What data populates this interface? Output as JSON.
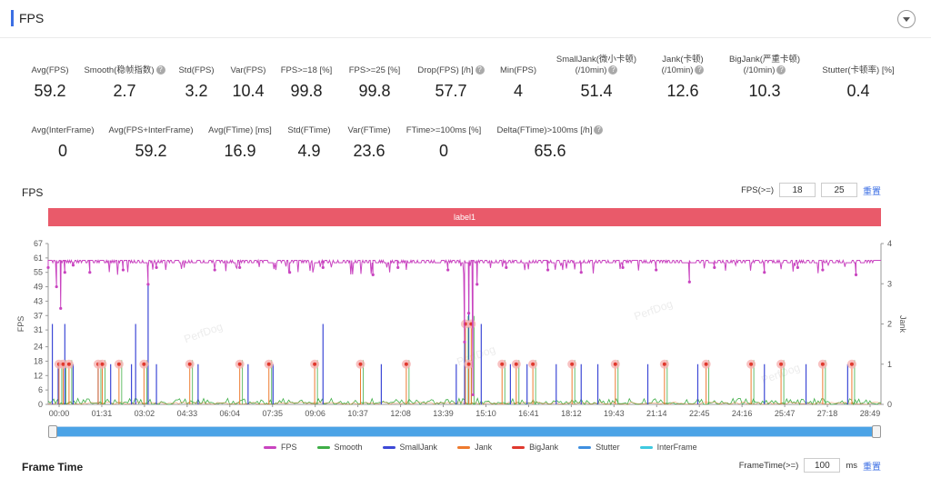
{
  "header": {
    "title": "FPS"
  },
  "stats_row1": [
    {
      "label": "Avg(FPS)",
      "value": "59.2",
      "help": false
    },
    {
      "label": "Smooth(稳帧指数)",
      "value": "2.7",
      "help": true
    },
    {
      "label": "Std(FPS)",
      "value": "3.2",
      "help": false
    },
    {
      "label": "Var(FPS)",
      "value": "10.4",
      "help": false
    },
    {
      "label": "FPS>=18 [%]",
      "value": "99.8",
      "help": false
    },
    {
      "label": "FPS>=25 [%]",
      "value": "99.8",
      "help": false
    },
    {
      "label": "Drop(FPS) [/h]",
      "value": "57.7",
      "help": true
    },
    {
      "label": "Min(FPS)",
      "value": "4",
      "help": false
    },
    {
      "label": "SmallJank(微小卡顿)",
      "label2": "(/10min)",
      "value": "51.4",
      "help": true
    },
    {
      "label": "Jank(卡顿)",
      "label2": "(/10min)",
      "value": "12.6",
      "help": true
    },
    {
      "label": "BigJank(严重卡顿)",
      "label2": "(/10min)",
      "value": "10.3",
      "help": true
    },
    {
      "label": "Stutter(卡顿率) [%]",
      "value": "0.4",
      "help": false
    }
  ],
  "stats_row2": [
    {
      "label": "Avg(InterFrame)",
      "value": "0",
      "help": false
    },
    {
      "label": "Avg(FPS+InterFrame)",
      "value": "59.2",
      "help": false
    },
    {
      "label": "Avg(FTime) [ms]",
      "value": "16.9",
      "help": false
    },
    {
      "label": "Std(FTime)",
      "value": "4.9",
      "help": false
    },
    {
      "label": "Var(FTime)",
      "value": "23.6",
      "help": false
    },
    {
      "label": "FTime>=100ms [%]",
      "value": "0",
      "help": false
    },
    {
      "label": "Delta(FTime)>100ms [/h]",
      "value": "65.6",
      "help": true
    }
  ],
  "fps_section": {
    "title": "FPS",
    "threshold_label": "FPS(>=)",
    "threshold1": "18",
    "threshold2": "25",
    "reset": "重置",
    "label_bar": "label1"
  },
  "frametime_section": {
    "title": "Frame Time",
    "threshold_label": "FrameTime(>=)",
    "threshold": "100",
    "unit": "ms",
    "reset": "重置"
  },
  "watermark": "PerfDog",
  "legend": [
    {
      "name": "FPS",
      "color": "#c944c0"
    },
    {
      "name": "Smooth",
      "color": "#3fae47"
    },
    {
      "name": "SmallJank",
      "color": "#3d49d6"
    },
    {
      "name": "Jank",
      "color": "#ee7a2e"
    },
    {
      "name": "BigJank",
      "color": "#e0392e"
    },
    {
      "name": "Stutter",
      "color": "#3f8fe0"
    },
    {
      "name": "InterFrame",
      "color": "#3fc9e0"
    }
  ],
  "chart_data": {
    "type": "line",
    "ylabel": "FPS",
    "y2label": "Jank",
    "yticks": [
      0,
      6,
      12,
      18,
      24,
      31,
      37,
      43,
      49,
      55,
      61,
      67
    ],
    "y2ticks": [
      0,
      1,
      2,
      3,
      4
    ],
    "ylim": [
      0,
      67
    ],
    "y2lim": [
      0,
      4
    ],
    "x_ticks": [
      "00:00",
      "01:31",
      "03:02",
      "04:33",
      "06:04",
      "07:35",
      "09:06",
      "10:37",
      "12:08",
      "13:39",
      "15:10",
      "16:41",
      "18:12",
      "19:43",
      "21:14",
      "22:45",
      "24:16",
      "25:47",
      "27:18",
      "28:49"
    ],
    "fps_baseline": 60,
    "fps_dips": [
      {
        "t": 0.0,
        "v": 57
      },
      {
        "t": 0.01,
        "v": 49
      },
      {
        "t": 0.015,
        "v": 40
      },
      {
        "t": 0.02,
        "v": 55
      },
      {
        "t": 0.03,
        "v": 58
      },
      {
        "t": 0.05,
        "v": 55
      },
      {
        "t": 0.09,
        "v": 56
      },
      {
        "t": 0.12,
        "v": 50
      },
      {
        "t": 0.13,
        "v": 57
      },
      {
        "t": 0.2,
        "v": 56
      },
      {
        "t": 0.23,
        "v": 57
      },
      {
        "t": 0.29,
        "v": 55
      },
      {
        "t": 0.33,
        "v": 57
      },
      {
        "t": 0.39,
        "v": 54
      },
      {
        "t": 0.42,
        "v": 57
      },
      {
        "t": 0.48,
        "v": 56
      },
      {
        "t": 0.5,
        "v": 26
      },
      {
        "t": 0.505,
        "v": 38
      },
      {
        "t": 0.51,
        "v": 4
      },
      {
        "t": 0.515,
        "v": 50
      },
      {
        "t": 0.55,
        "v": 57
      },
      {
        "t": 0.6,
        "v": 56
      },
      {
        "t": 0.64,
        "v": 55
      },
      {
        "t": 0.69,
        "v": 57
      },
      {
        "t": 0.73,
        "v": 56
      },
      {
        "t": 0.77,
        "v": 51
      },
      {
        "t": 0.8,
        "v": 57
      },
      {
        "t": 0.86,
        "v": 55
      },
      {
        "t": 0.9,
        "v": 57
      },
      {
        "t": 0.93,
        "v": 56
      },
      {
        "t": 0.97,
        "v": 54
      }
    ],
    "smalljank_spikes": [
      {
        "t": 0.005,
        "v": 2
      },
      {
        "t": 0.012,
        "v": 1
      },
      {
        "t": 0.02,
        "v": 2
      },
      {
        "t": 0.03,
        "v": 1
      },
      {
        "t": 0.06,
        "v": 1
      },
      {
        "t": 0.075,
        "v": 1
      },
      {
        "t": 0.1,
        "v": 1
      },
      {
        "t": 0.105,
        "v": 2
      },
      {
        "t": 0.12,
        "v": 3
      },
      {
        "t": 0.13,
        "v": 1
      },
      {
        "t": 0.18,
        "v": 1
      },
      {
        "t": 0.24,
        "v": 1
      },
      {
        "t": 0.27,
        "v": 1
      },
      {
        "t": 0.33,
        "v": 2
      },
      {
        "t": 0.4,
        "v": 1
      },
      {
        "t": 0.49,
        "v": 1
      },
      {
        "t": 0.5,
        "v": 2
      },
      {
        "t": 0.505,
        "v": 3
      },
      {
        "t": 0.52,
        "v": 2
      },
      {
        "t": 0.555,
        "v": 1
      },
      {
        "t": 0.575,
        "v": 1
      },
      {
        "t": 0.61,
        "v": 1
      },
      {
        "t": 0.64,
        "v": 1
      },
      {
        "t": 0.66,
        "v": 1
      },
      {
        "t": 0.72,
        "v": 1
      },
      {
        "t": 0.78,
        "v": 1
      },
      {
        "t": 0.86,
        "v": 1
      },
      {
        "t": 0.91,
        "v": 1
      },
      {
        "t": 0.96,
        "v": 1
      }
    ],
    "bigjank_markers": [
      {
        "t": 0.013,
        "v": 1
      },
      {
        "t": 0.018,
        "v": 1
      },
      {
        "t": 0.025,
        "v": 1
      },
      {
        "t": 0.06,
        "v": 1
      },
      {
        "t": 0.065,
        "v": 1
      },
      {
        "t": 0.085,
        "v": 1
      },
      {
        "t": 0.115,
        "v": 1
      },
      {
        "t": 0.17,
        "v": 1
      },
      {
        "t": 0.23,
        "v": 1
      },
      {
        "t": 0.265,
        "v": 1
      },
      {
        "t": 0.32,
        "v": 1
      },
      {
        "t": 0.375,
        "v": 1
      },
      {
        "t": 0.43,
        "v": 1
      },
      {
        "t": 0.501,
        "v": 2
      },
      {
        "t": 0.508,
        "v": 2
      },
      {
        "t": 0.505,
        "v": 1
      },
      {
        "t": 0.545,
        "v": 1
      },
      {
        "t": 0.562,
        "v": 1
      },
      {
        "t": 0.582,
        "v": 1
      },
      {
        "t": 0.629,
        "v": 1
      },
      {
        "t": 0.681,
        "v": 1
      },
      {
        "t": 0.74,
        "v": 1
      },
      {
        "t": 0.79,
        "v": 1
      },
      {
        "t": 0.844,
        "v": 1
      },
      {
        "t": 0.88,
        "v": 1
      },
      {
        "t": 0.93,
        "v": 1
      },
      {
        "t": 0.965,
        "v": 1
      }
    ]
  }
}
